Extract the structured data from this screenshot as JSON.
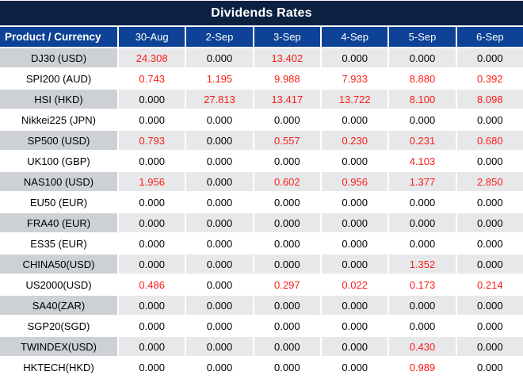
{
  "title": "Dividends Rates",
  "table": {
    "product_header": "Product / Currency",
    "date_headers": [
      "30-Aug",
      "2-Sep",
      "3-Sep",
      "4-Sep",
      "5-Sep",
      "6-Sep"
    ],
    "rows": [
      {
        "product": "DJ30 (USD)",
        "values": [
          "24.308",
          "0.000",
          "13.402",
          "0.000",
          "0.000",
          "0.000"
        ]
      },
      {
        "product": "SPI200 (AUD)",
        "values": [
          "0.743",
          "1.195",
          "9.988",
          "7.933",
          "8.880",
          "0.392"
        ]
      },
      {
        "product": "HSI (HKD)",
        "values": [
          "0.000",
          "27.813",
          "13.417",
          "13.722",
          "8.100",
          "8.098"
        ]
      },
      {
        "product": "Nikkei225 (JPN)",
        "values": [
          "0.000",
          "0.000",
          "0.000",
          "0.000",
          "0.000",
          "0.000"
        ]
      },
      {
        "product": "SP500 (USD)",
        "values": [
          "0.793",
          "0.000",
          "0.557",
          "0.230",
          "0.231",
          "0.680"
        ]
      },
      {
        "product": "UK100 (GBP)",
        "values": [
          "0.000",
          "0.000",
          "0.000",
          "0.000",
          "4.103",
          "0.000"
        ]
      },
      {
        "product": "NAS100 (USD)",
        "values": [
          "1.956",
          "0.000",
          "0.602",
          "0.956",
          "1.377",
          "2.850"
        ]
      },
      {
        "product": "EU50 (EUR)",
        "values": [
          "0.000",
          "0.000",
          "0.000",
          "0.000",
          "0.000",
          "0.000"
        ]
      },
      {
        "product": "FRA40 (EUR)",
        "values": [
          "0.000",
          "0.000",
          "0.000",
          "0.000",
          "0.000",
          "0.000"
        ]
      },
      {
        "product": "ES35 (EUR)",
        "values": [
          "0.000",
          "0.000",
          "0.000",
          "0.000",
          "0.000",
          "0.000"
        ]
      },
      {
        "product": "CHINA50(USD)",
        "values": [
          "0.000",
          "0.000",
          "0.000",
          "0.000",
          "1.352",
          "0.000"
        ]
      },
      {
        "product": "US2000(USD)",
        "values": [
          "0.486",
          "0.000",
          "0.297",
          "0.022",
          "0.173",
          "0.214"
        ]
      },
      {
        "product": "SA40(ZAR)",
        "values": [
          "0.000",
          "0.000",
          "0.000",
          "0.000",
          "0.000",
          "0.000"
        ]
      },
      {
        "product": "SGP20(SGD)",
        "values": [
          "0.000",
          "0.000",
          "0.000",
          "0.000",
          "0.000",
          "0.000"
        ]
      },
      {
        "product": "TWINDEX(USD)",
        "values": [
          "0.000",
          "0.000",
          "0.000",
          "0.000",
          "0.430",
          "0.000"
        ]
      },
      {
        "product": "HKTECH(HKD)",
        "values": [
          "0.000",
          "0.000",
          "0.000",
          "0.000",
          "0.989",
          "0.000"
        ]
      }
    ]
  },
  "colors": {
    "title_bg": "#0c2142",
    "header_bg": "#0d4296",
    "header_text": "#ffffff",
    "stripe_product_bg": "#cdd0d4",
    "stripe_value_bg": "#e7e8ea",
    "value_red": "#fb1e19",
    "text_black": "#000000"
  },
  "chart_data": {
    "type": "table",
    "title": "Dividends Rates",
    "categories": [
      "30-Aug",
      "2-Sep",
      "3-Sep",
      "4-Sep",
      "5-Sep",
      "6-Sep"
    ],
    "series": [
      {
        "name": "DJ30 (USD)",
        "values": [
          24.308,
          0.0,
          13.402,
          0.0,
          0.0,
          0.0
        ]
      },
      {
        "name": "SPI200 (AUD)",
        "values": [
          0.743,
          1.195,
          9.988,
          7.933,
          8.88,
          0.392
        ]
      },
      {
        "name": "HSI (HKD)",
        "values": [
          0.0,
          27.813,
          13.417,
          13.722,
          8.1,
          8.098
        ]
      },
      {
        "name": "Nikkei225 (JPN)",
        "values": [
          0.0,
          0.0,
          0.0,
          0.0,
          0.0,
          0.0
        ]
      },
      {
        "name": "SP500 (USD)",
        "values": [
          0.793,
          0.0,
          0.557,
          0.23,
          0.231,
          0.68
        ]
      },
      {
        "name": "UK100 (GBP)",
        "values": [
          0.0,
          0.0,
          0.0,
          0.0,
          4.103,
          0.0
        ]
      },
      {
        "name": "NAS100 (USD)",
        "values": [
          1.956,
          0.0,
          0.602,
          0.956,
          1.377,
          2.85
        ]
      },
      {
        "name": "EU50 (EUR)",
        "values": [
          0.0,
          0.0,
          0.0,
          0.0,
          0.0,
          0.0
        ]
      },
      {
        "name": "FRA40 (EUR)",
        "values": [
          0.0,
          0.0,
          0.0,
          0.0,
          0.0,
          0.0
        ]
      },
      {
        "name": "ES35 (EUR)",
        "values": [
          0.0,
          0.0,
          0.0,
          0.0,
          0.0,
          0.0
        ]
      },
      {
        "name": "CHINA50(USD)",
        "values": [
          0.0,
          0.0,
          0.0,
          0.0,
          1.352,
          0.0
        ]
      },
      {
        "name": "US2000(USD)",
        "values": [
          0.486,
          0.0,
          0.297,
          0.022,
          0.173,
          0.214
        ]
      },
      {
        "name": "SA40(ZAR)",
        "values": [
          0.0,
          0.0,
          0.0,
          0.0,
          0.0,
          0.0
        ]
      },
      {
        "name": "SGP20(SGD)",
        "values": [
          0.0,
          0.0,
          0.0,
          0.0,
          0.0,
          0.0
        ]
      },
      {
        "name": "TWINDEX(USD)",
        "values": [
          0.0,
          0.0,
          0.0,
          0.0,
          0.43,
          0.0
        ]
      },
      {
        "name": "HKTECH(HKD)",
        "values": [
          0.0,
          0.0,
          0.0,
          0.0,
          0.989,
          0.0
        ]
      }
    ]
  }
}
